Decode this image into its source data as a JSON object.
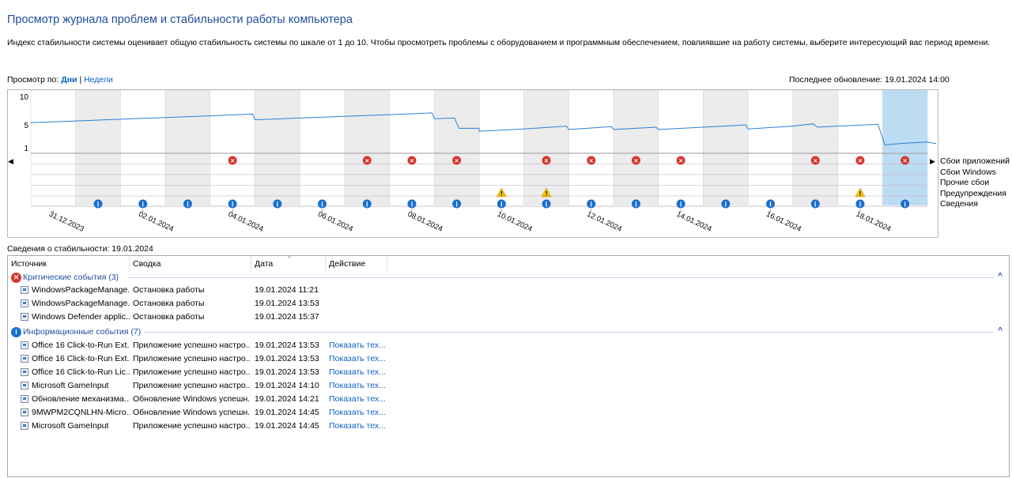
{
  "title": "Просмотр журнала проблем и стабильности работы компьютера",
  "description": "Индекс стабильности системы оценивает общую стабильность системы по шкале от 1 до 10. Чтобы просмотреть проблемы с оборудованием и программным обеспечением, повлиявшие на работу системы, выберите интересующий вас период времени.",
  "view_by": {
    "label": "Просмотр по:",
    "days": "Дни",
    "separator": "|",
    "weeks": "Недели"
  },
  "last_update": "Последнее обновление: 19.01.2024 14:00",
  "colors": {
    "accent": "#1f4e9c",
    "link": "#0b5fc4",
    "critical": "#d9342b",
    "info": "#1a6fd1",
    "warning": "#f2c200",
    "selected": "#bcdcf4",
    "line": "#2a7fd4"
  },
  "chart_data": {
    "type": "line",
    "y_ticks": [
      "10",
      "5",
      "1"
    ],
    "ylim": [
      1,
      10
    ],
    "x_labels": [
      "31.12.2023",
      "02.01.2024",
      "04.01.2024",
      "06.01.2024",
      "08.01.2024",
      "10.01.2024",
      "12.01.2024",
      "14.01.2024",
      "16.01.2024",
      "18.01.2024"
    ],
    "columns": 20,
    "selected_column": 19,
    "stability_index": [
      [
        0,
        5.4
      ],
      [
        1,
        5.7
      ],
      [
        2,
        6.0
      ],
      [
        3,
        6.3
      ],
      [
        4,
        6.6
      ],
      [
        4.95,
        6.9
      ],
      [
        5,
        5.9
      ],
      [
        6,
        6.2
      ],
      [
        7,
        6.5
      ],
      [
        8,
        6.8
      ],
      [
        8.95,
        7.1
      ],
      [
        9,
        6.1
      ],
      [
        9.45,
        6.2
      ],
      [
        9.55,
        4.4
      ],
      [
        10,
        4.4
      ],
      [
        10,
        3.9
      ],
      [
        11,
        4.3
      ],
      [
        11.95,
        4.8
      ],
      [
        12,
        4.2
      ],
      [
        12.95,
        4.7
      ],
      [
        13,
        4.2
      ],
      [
        13.95,
        4.6
      ],
      [
        14,
        4.2
      ],
      [
        15,
        4.6
      ],
      [
        15.95,
        5.0
      ],
      [
        16,
        4.3
      ],
      [
        17,
        4.8
      ],
      [
        17.45,
        5.2
      ],
      [
        17.55,
        4.6
      ],
      [
        18,
        4.8
      ],
      [
        18.9,
        5.1
      ],
      [
        19.05,
        1.5
      ],
      [
        19.5,
        1.8
      ],
      [
        20,
        2.0
      ],
      [
        20.2,
        1.7
      ]
    ],
    "categories": [
      "Сбои приложений",
      "Сбои Windows",
      "Прочие сбои",
      "Предупреждения",
      "Сведения"
    ],
    "events": {
      "app_failures": [
        4,
        7,
        8,
        9,
        11,
        12,
        13,
        14,
        17,
        18,
        19
      ],
      "windows_failures": [],
      "other_failures": [],
      "warnings": [
        10,
        11,
        18
      ],
      "info": [
        1,
        2,
        3,
        4,
        5,
        6,
        7,
        8,
        9,
        10,
        11,
        12,
        13,
        14,
        15,
        16,
        17,
        18,
        19
      ]
    }
  },
  "details": {
    "title": "Сведения о стабильности: 19.01.2024",
    "columns": [
      "Источник",
      "Сводка",
      "Дата",
      "Действие"
    ],
    "critical_group": {
      "label": "Критические события (3)",
      "icon": "critical-x-icon"
    },
    "critical_rows": [
      {
        "source": "WindowsPackageManage...",
        "summary": "Остановка работы",
        "date": "19.01.2024 11:21",
        "action": ""
      },
      {
        "source": "WindowsPackageManage...",
        "summary": "Остановка работы",
        "date": "19.01.2024 13:53",
        "action": ""
      },
      {
        "source": "Windows Defender applic...",
        "summary": "Остановка работы",
        "date": "19.01.2024 15:37",
        "action": ""
      }
    ],
    "info_group": {
      "label": "Информационные события (7)",
      "icon": "info-icon"
    },
    "info_rows": [
      {
        "source": "Office 16 Click-to-Run Ext...",
        "summary": "Приложение успешно настро...",
        "date": "19.01.2024 13:53",
        "action": "Показать тех..."
      },
      {
        "source": "Office 16 Click-to-Run Ext...",
        "summary": "Приложение успешно настро...",
        "date": "19.01.2024 13:53",
        "action": "Показать тех..."
      },
      {
        "source": "Office 16 Click-to-Run Lic...",
        "summary": "Приложение успешно настро...",
        "date": "19.01.2024 13:53",
        "action": "Показать тех..."
      },
      {
        "source": "Microsoft GameInput",
        "summary": "Приложение успешно настро...",
        "date": "19.01.2024 14:10",
        "action": "Показать тех..."
      },
      {
        "source": "Обновление механизма...",
        "summary": "Обновление Windows успешн...",
        "date": "19.01.2024 14:21",
        "action": "Показать тех..."
      },
      {
        "source": "9MWPM2CQNLHN-Micro...",
        "summary": "Обновление Windows успешн...",
        "date": "19.01.2024 14:45",
        "action": "Показать тех..."
      },
      {
        "source": "Microsoft GameInput",
        "summary": "Приложение успешно настро...",
        "date": "19.01.2024 14:45",
        "action": "Показать тех..."
      }
    ]
  }
}
